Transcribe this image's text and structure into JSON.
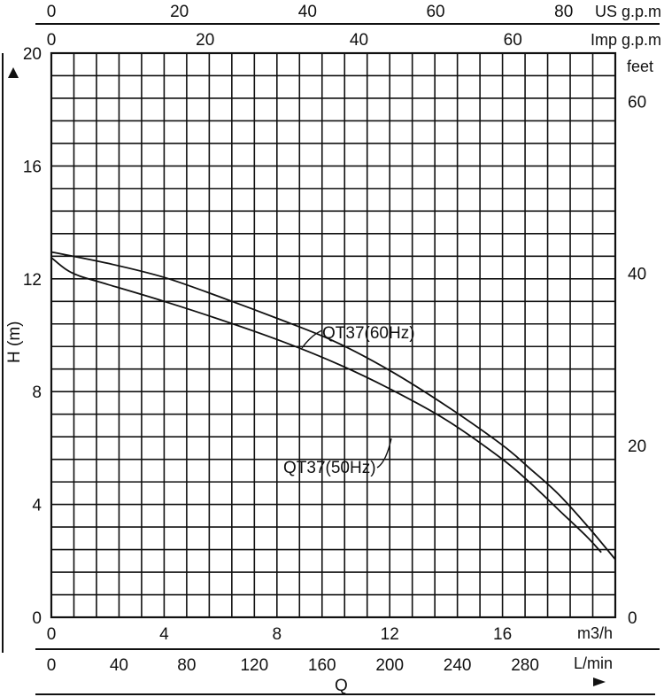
{
  "chart_data": {
    "type": "line",
    "title": "",
    "y_axis_left": {
      "label": "H (m)",
      "range": [
        0,
        20
      ],
      "ticks": [
        "0",
        "4",
        "8",
        "12",
        "16",
        "20"
      ]
    },
    "y_axis_right": {
      "unit": "feet",
      "ticks": [
        "0",
        "20",
        "40",
        "60"
      ]
    },
    "x_axis_primary": {
      "unit": "m3/h",
      "range": [
        0,
        20
      ],
      "ticks": [
        "0",
        "4",
        "8",
        "12",
        "16"
      ]
    },
    "x_axis_lmin": {
      "unit": "L/min",
      "ticks": [
        "0",
        "40",
        "80",
        "120",
        "160",
        "200",
        "240",
        "280"
      ]
    },
    "x_axis_us": {
      "unit_a": "US",
      "unit_b": "g.p.m",
      "ticks": [
        "0",
        "20",
        "40",
        "60",
        "80"
      ]
    },
    "x_axis_imp": {
      "unit_a": "Imp",
      "unit_b": "g.p.m",
      "ticks": [
        "0",
        "20",
        "40",
        "60"
      ]
    },
    "x_label": "Q",
    "grid": true,
    "series": [
      {
        "name": "QT37(60Hz)",
        "points": [
          [
            0,
            12.95
          ],
          [
            2,
            12.55
          ],
          [
            4,
            12.05
          ],
          [
            6,
            11.35
          ],
          [
            8,
            10.6
          ],
          [
            10,
            9.8
          ],
          [
            12,
            8.75
          ],
          [
            14,
            7.5
          ],
          [
            16,
            6.1
          ],
          [
            17,
            5.25
          ],
          [
            18,
            4.35
          ],
          [
            19,
            3.25
          ],
          [
            20,
            2.05
          ]
        ]
      },
      {
        "name": "QT37(50Hz)",
        "points": [
          [
            0,
            12.75
          ],
          [
            0.5,
            12.35
          ],
          [
            1,
            12.1
          ],
          [
            2,
            11.8
          ],
          [
            4,
            11.2
          ],
          [
            6,
            10.55
          ],
          [
            8,
            9.85
          ],
          [
            10,
            9.05
          ],
          [
            12,
            8.1
          ],
          [
            14,
            7.0
          ],
          [
            16,
            5.6
          ],
          [
            17,
            4.75
          ],
          [
            18,
            3.8
          ],
          [
            19,
            2.85
          ],
          [
            19.5,
            2.3
          ]
        ]
      }
    ]
  }
}
